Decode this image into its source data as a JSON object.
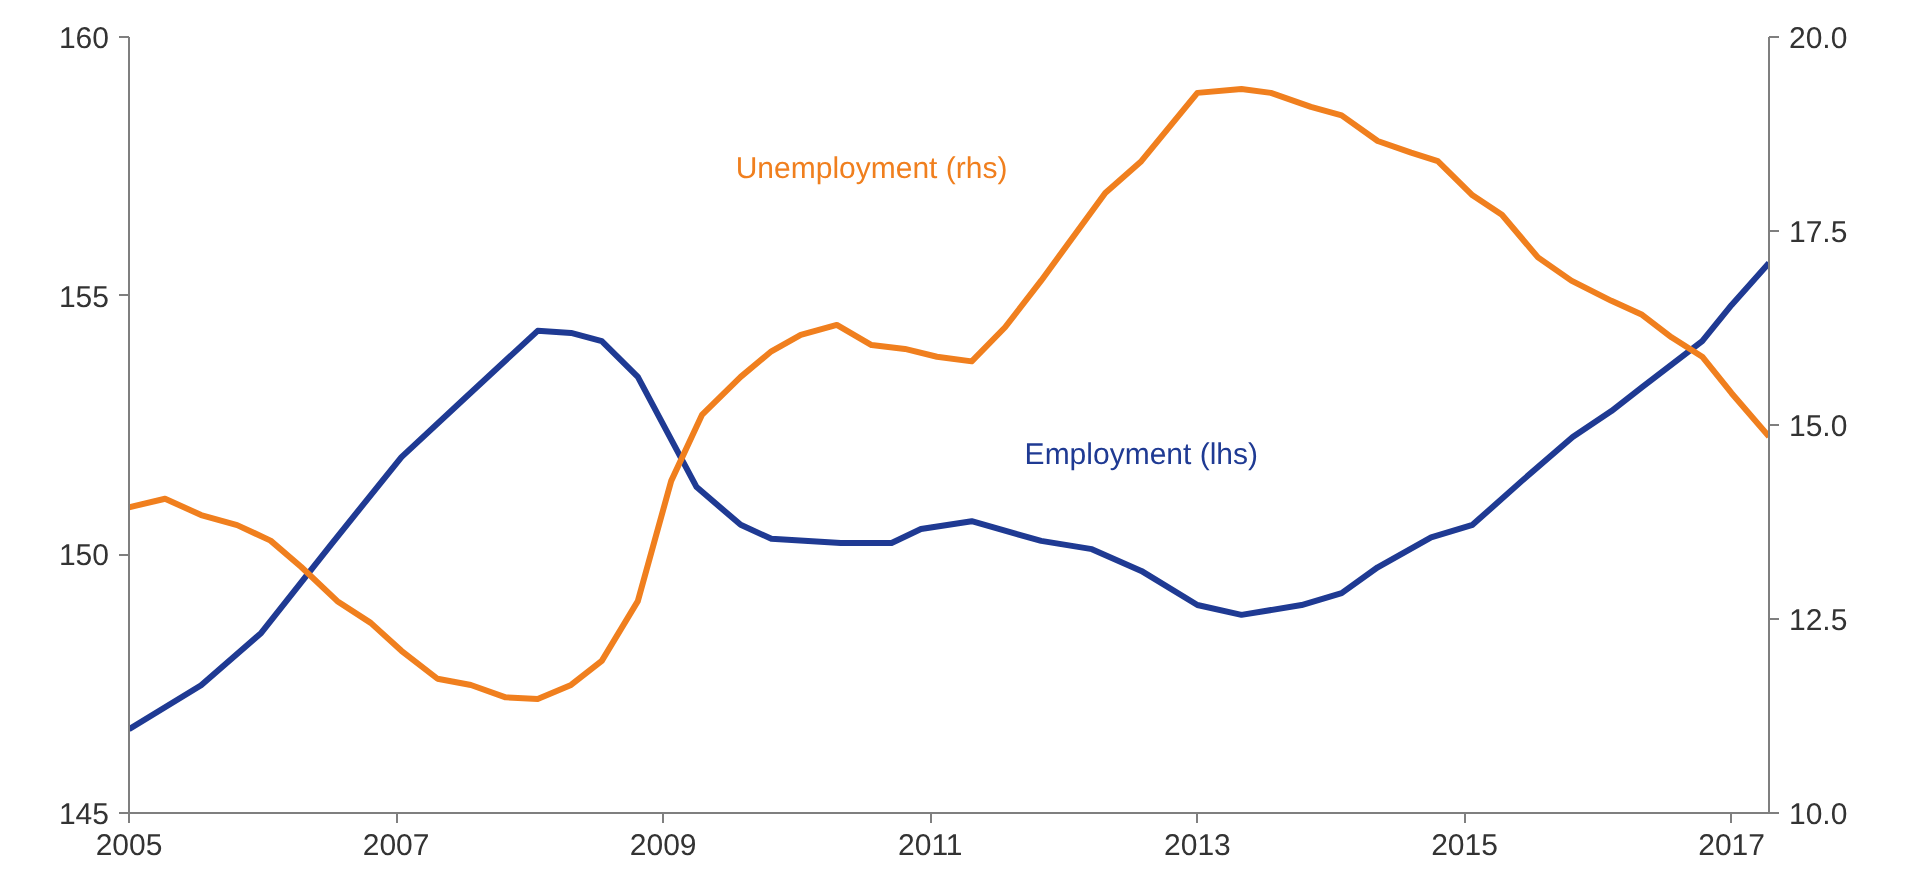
{
  "chart_data": {
    "type": "line",
    "xlim": [
      2005,
      2017.28
    ],
    "xticks": [
      2005,
      2007,
      2009,
      2011,
      2013,
      2015,
      2017
    ],
    "ylim": [
      145,
      160
    ],
    "yticks": [
      145,
      150,
      155,
      160
    ],
    "y2lim": [
      10,
      20
    ],
    "y2ticks": [
      {
        "value": 10,
        "label": "10.0"
      },
      {
        "value": 12.5,
        "label": "12.5"
      },
      {
        "value": 15,
        "label": "15.0"
      },
      {
        "value": 17.5,
        "label": "17.5"
      },
      {
        "value": 20,
        "label": "20.0"
      }
    ],
    "grid": false,
    "marker": "none",
    "line_style": "solid",
    "series": [
      {
        "name": "Employment (lhs)",
        "color": "#1f3a93",
        "x": [
          2005.0,
          2005.54,
          2005.99,
          2006.51,
          2007.04,
          2007.49,
          2008.06,
          2008.31,
          2008.54,
          2008.81,
          2009.25,
          2009.58,
          2009.81,
          2010.33,
          2010.71,
          2010.93,
          2011.31,
          2011.83,
          2012.21,
          2012.58,
          2013.0,
          2013.33,
          2013.78,
          2014.08,
          2014.35,
          2014.75,
          2015.06,
          2015.43,
          2015.81,
          2016.1,
          2016.33,
          2016.78,
          2017.0,
          2017.28
        ],
        "values": [
          146.62,
          147.47,
          148.48,
          150.18,
          151.88,
          152.96,
          154.32,
          154.28,
          154.12,
          153.43,
          151.3,
          150.57,
          150.3,
          150.22,
          150.22,
          150.49,
          150.64,
          150.26,
          150.1,
          149.68,
          149.02,
          148.83,
          149.02,
          149.25,
          149.75,
          150.33,
          150.57,
          151.42,
          152.27,
          152.77,
          153.23,
          154.12,
          154.82,
          155.63
        ]
      },
      {
        "name": "Unemployment (rhs)",
        "color": "#f07f1e",
        "axis": "y2",
        "x": [
          2005.0,
          2005.27,
          2005.54,
          2005.81,
          2006.06,
          2006.29,
          2006.56,
          2006.81,
          2007.04,
          2007.31,
          2007.56,
          2007.82,
          2008.06,
          2008.31,
          2008.54,
          2008.81,
          2009.06,
          2009.29,
          2009.58,
          2009.81,
          2010.03,
          2010.3,
          2010.56,
          2010.81,
          2011.05,
          2011.31,
          2011.56,
          2011.83,
          2012.31,
          2012.58,
          2013.0,
          2013.33,
          2013.55,
          2013.85,
          2014.08,
          2014.35,
          2014.6,
          2014.8,
          2015.06,
          2015.28,
          2015.55,
          2015.8,
          2016.1,
          2016.33,
          2016.55,
          2016.78,
          2017.0,
          2017.28
        ],
        "values": [
          13.94,
          14.05,
          13.84,
          13.71,
          13.51,
          13.17,
          12.73,
          12.45,
          12.09,
          11.73,
          11.65,
          11.49,
          11.47,
          11.65,
          11.96,
          12.73,
          14.28,
          15.13,
          15.62,
          15.95,
          16.16,
          16.29,
          16.03,
          15.98,
          15.88,
          15.82,
          16.26,
          16.86,
          17.99,
          18.4,
          19.28,
          19.33,
          19.28,
          19.1,
          18.99,
          18.66,
          18.51,
          18.4,
          17.96,
          17.71,
          17.16,
          16.86,
          16.6,
          16.42,
          16.13,
          15.88,
          15.41,
          14.85
        ]
      }
    ]
  }
}
